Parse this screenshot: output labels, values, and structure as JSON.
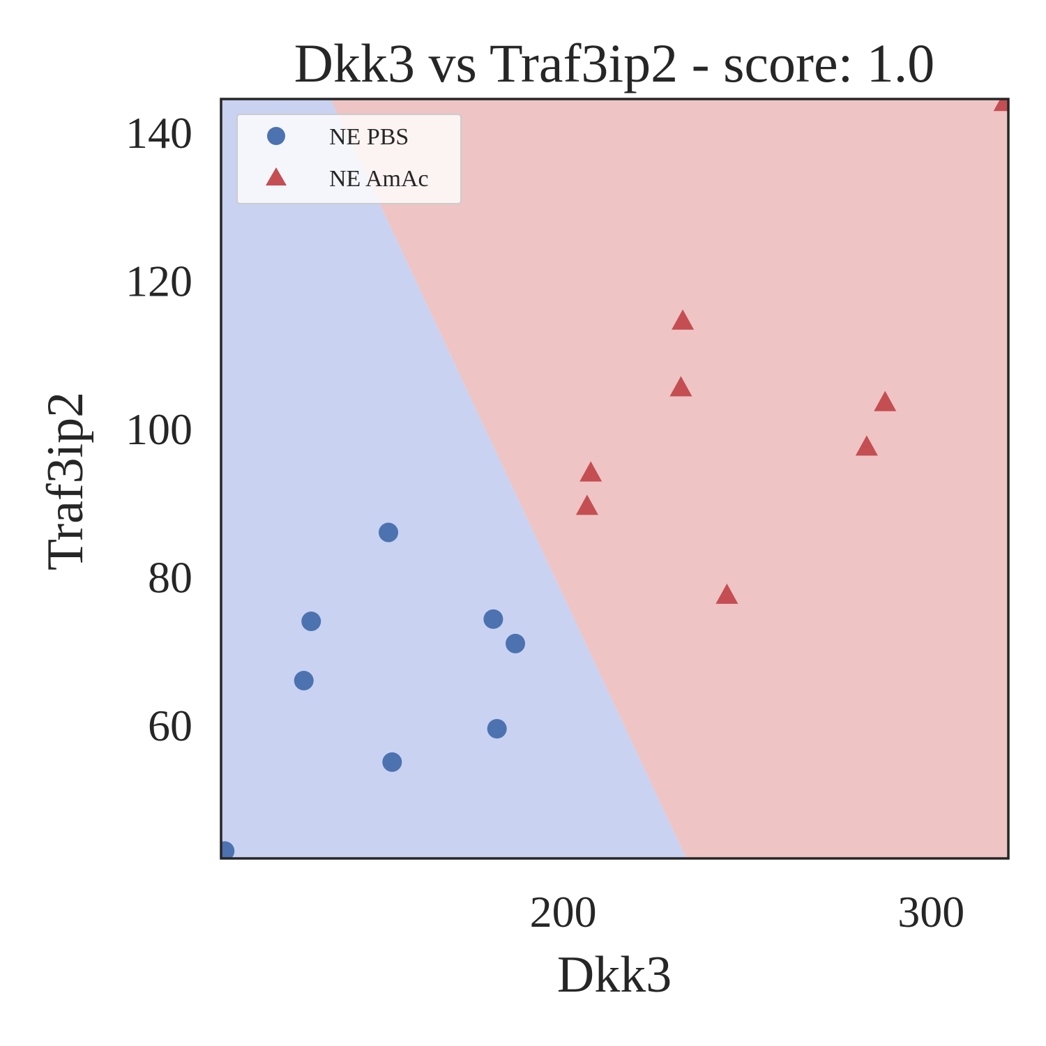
{
  "chart_data": {
    "type": "scatter",
    "title": "Dkk3 vs Traf3ip2 - score: 1.0",
    "xlabel": "Dkk3",
    "ylabel": "Traf3ip2",
    "xlim": [
      107,
      321
    ],
    "ylim": [
      42.0,
      144.5
    ],
    "x_ticks": [
      200,
      300
    ],
    "y_ticks": [
      60,
      80,
      100,
      120,
      140
    ],
    "legend_position": "upper-left",
    "decision_boundary": {
      "points": [
        [
          136.8,
          144.5
        ],
        [
          233.5,
          42.0
        ]
      ],
      "left_region_color": "#c9d2f1",
      "right_region_color": "#eec4c4",
      "left_class": "NE PBS",
      "right_class": "NE AmAc"
    },
    "series": [
      {
        "name": "NE PBS",
        "marker": "circle",
        "color": "#4c72b0",
        "points": [
          [
            108,
            43
          ],
          [
            129.5,
            66.0
          ],
          [
            131.5,
            74.0
          ],
          [
            152.5,
            86.0
          ],
          [
            153.5,
            55.0
          ],
          [
            181.0,
            74.3
          ],
          [
            182.0,
            59.5
          ],
          [
            187.0,
            71.0
          ]
        ]
      },
      {
        "name": "NE AmAc",
        "marker": "triangle",
        "color": "#c44e52",
        "points": [
          [
            206.5,
            89.5
          ],
          [
            207.5,
            94.0
          ],
          [
            232.0,
            105.5
          ],
          [
            232.5,
            114.5
          ],
          [
            244.5,
            77.5
          ],
          [
            282.5,
            97.5
          ],
          [
            287.5,
            103.5
          ],
          [
            320.0,
            144.0
          ]
        ]
      }
    ]
  }
}
